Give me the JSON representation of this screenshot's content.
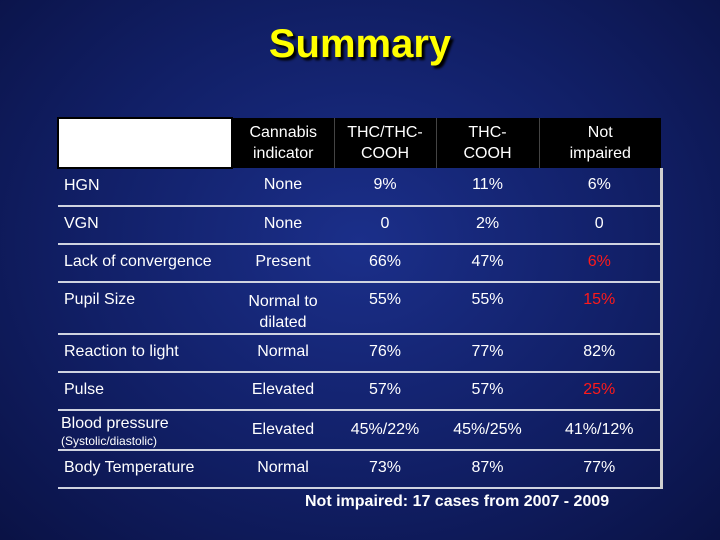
{
  "title": "Summary",
  "table": {
    "headers": [
      {
        "line1": "Cannabis",
        "line2": "indicator"
      },
      {
        "line1": "THC/THC-",
        "line2": "COOH"
      },
      {
        "line1": "THC-",
        "line2": "COOH"
      },
      {
        "line1": "Not",
        "line2": "impaired"
      }
    ],
    "rows": [
      {
        "label": "HGN",
        "values": [
          "None",
          "9%",
          "11%",
          "6%"
        ]
      },
      {
        "label": "VGN",
        "values": [
          "None",
          "0",
          "2%",
          "0"
        ]
      },
      {
        "label": "Lack of convergence",
        "values": [
          "Present",
          "66%",
          "47%",
          "6%"
        ]
      },
      {
        "label": "Pupil Size",
        "values": [
          "Normal to dilated",
          "55%",
          "55%",
          "15%"
        ]
      },
      {
        "label": "Reaction to light",
        "values": [
          "Normal",
          "76%",
          "77%",
          "82%"
        ]
      },
      {
        "label": "Pulse",
        "values": [
          "Elevated",
          "57%",
          "57%",
          "25%"
        ]
      },
      {
        "label": "Blood pressure",
        "sublabel": "(Systolic/diastolic)",
        "values": [
          "Elevated",
          "45%/22%",
          "45%/25%",
          "41%/12%"
        ]
      },
      {
        "label": "Body Temperature",
        "values": [
          "Normal",
          "73%",
          "87%",
          "77%"
        ]
      }
    ],
    "highlight_color": "#ff1a1a"
  },
  "footnote": "Not impaired:  17 cases from 2007 - 2009"
}
